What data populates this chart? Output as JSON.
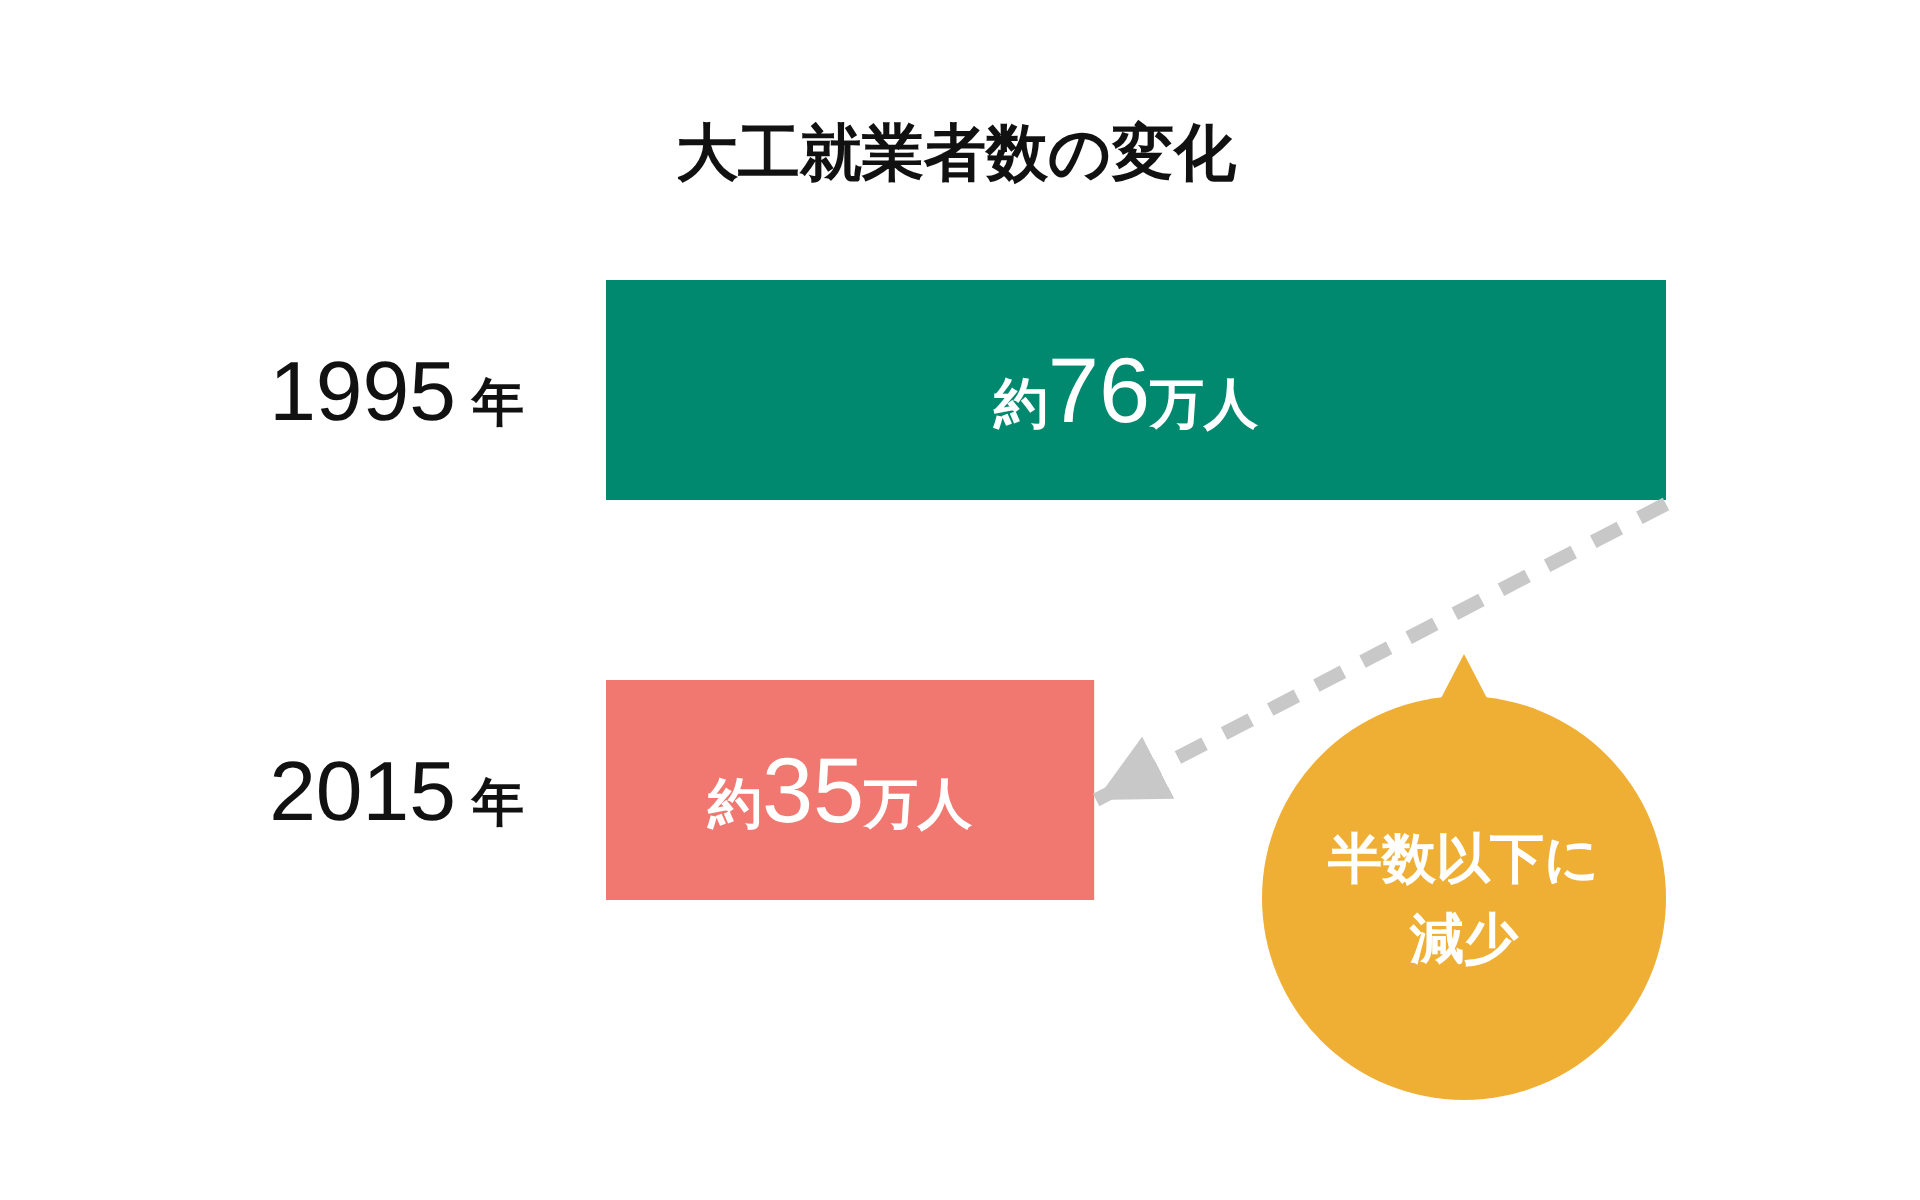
{
  "chart_data": {
    "type": "bar",
    "orientation": "horizontal",
    "title": "大工就業者数の変化",
    "categories": [
      "1995年",
      "2015年"
    ],
    "values": [
      76,
      35
    ],
    "colors": [
      "#00896f",
      "#f07870"
    ],
    "value_labels": [
      "約76万人",
      "約35万人"
    ],
    "tick_labels": "y",
    "annotations": [
      "半数以下に減少"
    ]
  }
}
